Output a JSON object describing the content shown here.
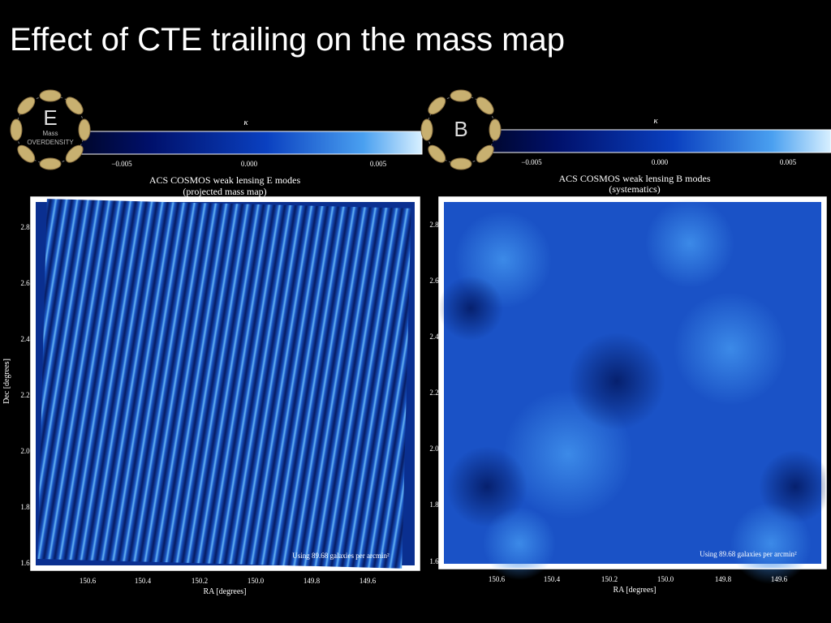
{
  "title": "Effect of CTE trailing on the mass map",
  "panels": [
    {
      "badge": {
        "letter": "E",
        "lines": [
          "Mass",
          "OVERDENSITY"
        ]
      },
      "colorbar": {
        "label": "κ",
        "ticks": [
          "−0.005",
          "0.000",
          "0.005"
        ]
      },
      "plot_title": [
        "ACS COSMOS weak lensing E modes",
        "(projected mass map)"
      ],
      "xlabel": "RA [degrees]",
      "ylabel": "Dec [degrees]",
      "xticks": [
        "150.6",
        "150.4",
        "150.2",
        "150.0",
        "149.8",
        "149.6"
      ],
      "yticks": [
        "2.8",
        "2.6",
        "2.4",
        "2.2",
        "2.0",
        "1.8",
        "1.6"
      ],
      "annotation": "Using 89.68 galaxies per arcmin²"
    },
    {
      "badge": {
        "letter": "B"
      },
      "colorbar": {
        "label": "κ",
        "ticks": [
          "−0.005",
          "0.000",
          "0.005"
        ]
      },
      "plot_title": [
        "ACS COSMOS weak lensing B modes",
        "(systematics)"
      ],
      "xlabel": "RA [degrees]",
      "xticks": [
        "150.6",
        "150.4",
        "150.2",
        "150.0",
        "149.8",
        "149.6"
      ],
      "yticks": [
        "2.8",
        "2.6",
        "2.4",
        "2.2",
        "2.0",
        "1.8",
        "1.6"
      ],
      "annotation": "Using 89.68 galaxies per arcmin²"
    }
  ]
}
